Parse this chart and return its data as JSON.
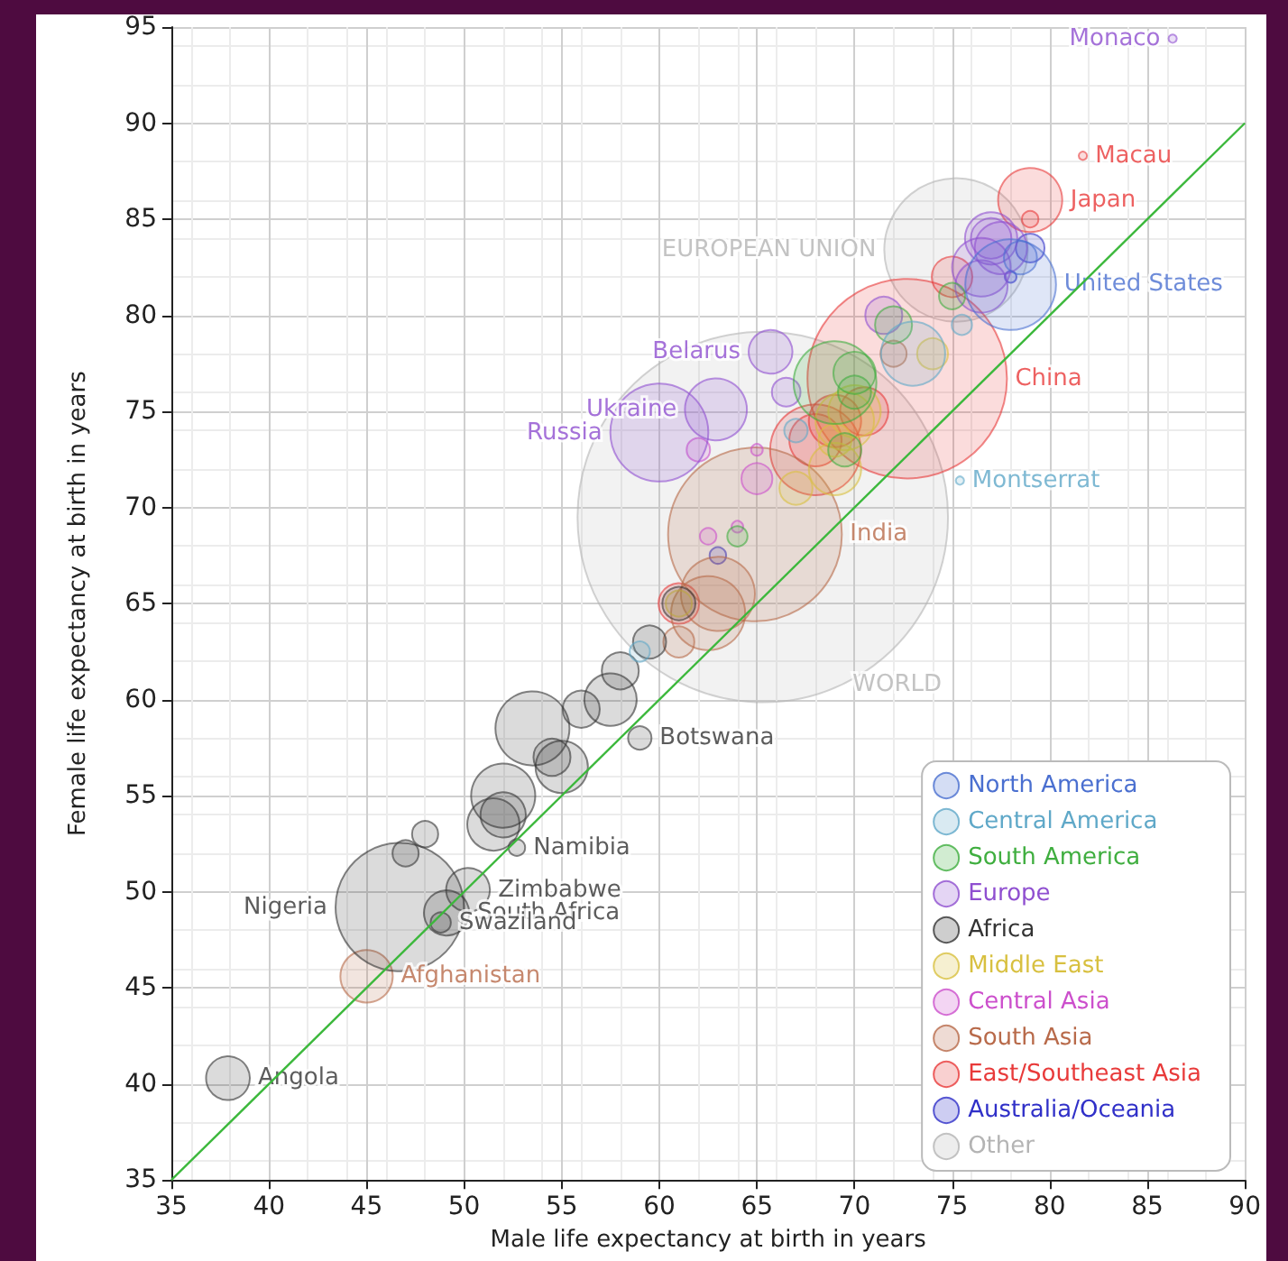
{
  "chart_data": {
    "type": "bubble",
    "xlabel": "Male life expectancy at birth in years",
    "ylabel": "Female life expectancy at birth in years",
    "xlim": [
      35,
      90
    ],
    "ylim": [
      35,
      95
    ],
    "xticks": [
      35,
      40,
      45,
      50,
      55,
      60,
      65,
      70,
      75,
      80,
      85,
      90
    ],
    "yticks": [
      35,
      40,
      45,
      50,
      55,
      60,
      65,
      70,
      75,
      80,
      85,
      90,
      95
    ],
    "grid": true,
    "legend": "bottom right",
    "marker": "circle",
    "series": [
      {
        "name": "North America",
        "color": "#4a6fd0",
        "x": [
          78,
          78.5
        ],
        "values": [
          81.6,
          83
        ],
        "sizes": [
          0.06,
          0.008
        ],
        "value_labels": [
          "United States",
          null
        ]
      },
      {
        "name": "Central America",
        "color": "#5fa8c8",
        "x": [
          73,
          67,
          75.5,
          59,
          75.4
        ],
        "values": [
          78,
          74,
          79.5,
          62.5,
          71.4
        ],
        "sizes": [
          0.03,
          0.004,
          0.003,
          0.003,
          0.0005
        ],
        "value_labels": [
          null,
          null,
          null,
          null,
          "Montserrat"
        ]
      },
      {
        "name": "South America",
        "color": "#3fae3f",
        "x": [
          69,
          72,
          70,
          69.5,
          64,
          70,
          75
        ],
        "values": [
          76.5,
          79.5,
          77,
          73,
          68.5,
          76,
          81
        ],
        "sizes": [
          0.05,
          0.01,
          0.013,
          0.008,
          0.003,
          0.008,
          0.005
        ],
        "value_labels": [
          null,
          null,
          null,
          null,
          null,
          null,
          null
        ]
      },
      {
        "name": "Europe",
        "color": "#8f4fd0",
        "x": [
          60,
          62.9,
          65.7,
          76.5,
          77,
          76.5,
          77.5,
          77,
          71.5,
          66.5,
          86.3
        ],
        "values": [
          73.9,
          75.1,
          78.1,
          82.5,
          84,
          81.5,
          83.5,
          84,
          80,
          76,
          94.4
        ],
        "sizes": [
          0.07,
          0.028,
          0.014,
          0.025,
          0.02,
          0.02,
          0.02,
          0.012,
          0.01,
          0.006,
          0.0005
        ],
        "value_labels": [
          "Russia",
          "Ukraine",
          "Belarus",
          null,
          null,
          null,
          null,
          null,
          null,
          null,
          "Monaco"
        ]
      },
      {
        "name": "Africa",
        "color": "#333333",
        "x": [
          46.7,
          37.9,
          50.2,
          49.1,
          48.8,
          52.7,
          59,
          53.5,
          52,
          55,
          51.5,
          52,
          57.5,
          54.5,
          56,
          58,
          59.5,
          61,
          47,
          48
        ],
        "values": [
          49.2,
          40.3,
          50.1,
          48.9,
          48.4,
          52.3,
          58,
          58.5,
          55,
          56.5,
          53.5,
          54,
          60,
          57,
          59.5,
          61.5,
          63,
          65,
          52,
          53
        ],
        "sizes": [
          0.12,
          0.014,
          0.014,
          0.015,
          0.003,
          0.002,
          0.004,
          0.04,
          0.03,
          0.02,
          0.02,
          0.015,
          0.02,
          0.01,
          0.01,
          0.01,
          0.008,
          0.008,
          0.005,
          0.005
        ],
        "value_labels": [
          "Nigeria",
          "Angola",
          "Zimbabwe",
          "South Africa",
          "Swaziland",
          "Namibia",
          "Botswana",
          null,
          null,
          null,
          null,
          null,
          null,
          null,
          null,
          null,
          null,
          null,
          null,
          null
        ]
      },
      {
        "name": "Middle East",
        "color": "#d8c040",
        "x": [
          69.5,
          69,
          70,
          74,
          67,
          61,
          69
        ],
        "values": [
          74.5,
          72,
          75,
          78,
          71,
          65,
          73.5
        ],
        "sizes": [
          0.025,
          0.02,
          0.02,
          0.007,
          0.008,
          0.005,
          0.008
        ],
        "value_labels": [
          null,
          null,
          null,
          null,
          null,
          null,
          null
        ]
      },
      {
        "name": "Central Asia",
        "color": "#cc4fcc",
        "x": [
          62,
          65,
          64,
          65,
          62.5
        ],
        "values": [
          73,
          71.5,
          69,
          73,
          68.5
        ],
        "sizes": [
          0.004,
          0.007,
          0.001,
          0.001,
          0.002
        ],
        "value_labels": [
          null,
          null,
          null,
          null,
          null
        ]
      },
      {
        "name": "South Asia",
        "color": "#b86a4a",
        "x": [
          64.9,
          45,
          63,
          62.5,
          61,
          72
        ],
        "values": [
          68.6,
          45.6,
          65.5,
          64.5,
          63,
          78
        ],
        "sizes": [
          0.22,
          0.02,
          0.04,
          0.04,
          0.007,
          0.005
        ],
        "value_labels": [
          "India",
          "Afghanistan",
          null,
          null,
          null,
          null
        ]
      },
      {
        "name": "East/Southeast Asia",
        "color": "#e83a3a",
        "x": [
          72.7,
          79,
          81.7,
          68,
          69,
          68,
          70.5,
          75,
          61,
          79
        ],
        "values": [
          76.7,
          86,
          88.3,
          73,
          74.5,
          73.5,
          75,
          82,
          65,
          85
        ],
        "sizes": [
          0.29,
          0.03,
          0.0005,
          0.06,
          0.02,
          0.02,
          0.017,
          0.012,
          0.012,
          0.002
        ],
        "value_labels": [
          "China",
          "Japan",
          "Macau",
          null,
          null,
          null,
          null,
          null,
          null,
          null
        ]
      },
      {
        "name": "Australia/Oceania",
        "color": "#3030c8",
        "x": [
          79,
          78,
          63
        ],
        "values": [
          83.5,
          82,
          67.5
        ],
        "sizes": [
          0.006,
          0.001,
          0.002
        ],
        "value_labels": [
          null,
          null,
          null
        ]
      },
      {
        "name": "Other",
        "color": "#b4b4b4",
        "x": [
          65.3,
          75.2
        ],
        "values": [
          69.5,
          83.4
        ],
        "sizes": [
          1,
          0.15
        ],
        "value_labels": [
          "WORLD",
          "EUROPEAN UNION"
        ]
      },
      {
        "type": "line",
        "color": "#3cb83c",
        "marker": "none",
        "x": [
          35,
          90
        ],
        "values": [
          35,
          90
        ]
      }
    ]
  }
}
